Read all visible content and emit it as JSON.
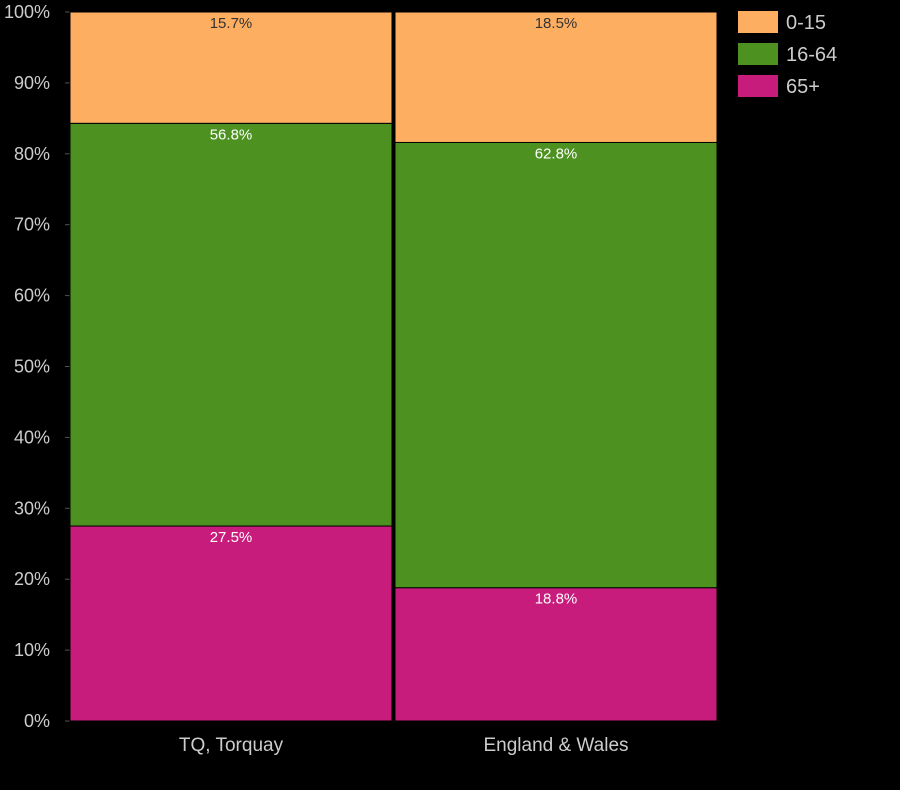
{
  "chart_data": {
    "type": "bar",
    "stacked": true,
    "categories": [
      "TQ, Torquay",
      "England & Wales"
    ],
    "series": [
      {
        "name": "65+",
        "color": "#c71c7c",
        "label_color": "#ffffff",
        "values": [
          27.5,
          18.8
        ],
        "value_labels": [
          "27.5%",
          "18.8%"
        ]
      },
      {
        "name": "16-64",
        "color": "#4d9220",
        "label_color": "#ffffff",
        "values": [
          56.8,
          62.8
        ],
        "value_labels": [
          "56.8%",
          "62.8%"
        ]
      },
      {
        "name": "0-15",
        "color": "#fdae61",
        "label_color": "#333333",
        "values": [
          15.7,
          18.5
        ],
        "value_labels": [
          "15.7%",
          "18.5%"
        ]
      }
    ],
    "legend_order": [
      "0-15",
      "16-64",
      "65+"
    ],
    "yticks": [
      "0%",
      "10%",
      "20%",
      "30%",
      "40%",
      "50%",
      "60%",
      "70%",
      "80%",
      "90%",
      "100%"
    ],
    "ylim": [
      0,
      100
    ],
    "legend_position": "top-right",
    "grid": false
  }
}
